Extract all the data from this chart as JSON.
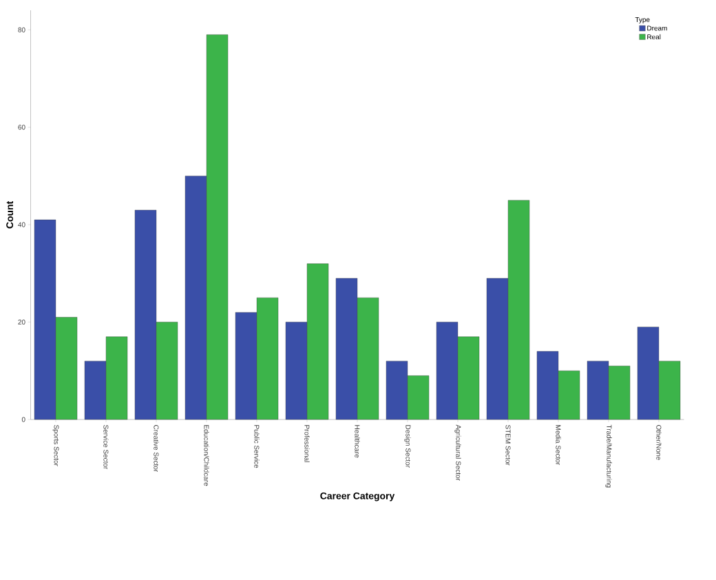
{
  "chart_data": {
    "type": "bar",
    "xlabel": "Career Category",
    "ylabel": "Count",
    "legend_title": "Type",
    "categories": [
      "Sports Sector",
      "Service Sector",
      "Creative Sector",
      "Education/Childcare",
      "Public Service",
      "Professional",
      "Healthcare",
      "Design Sector",
      "Agricultural Sector",
      "STEM Sector",
      "Media Sector",
      "Trade/Manufacturing",
      "Other/None"
    ],
    "series": [
      {
        "name": "Dream",
        "color": "#3a4fa8",
        "values": [
          41,
          12,
          43,
          50,
          22,
          20,
          29,
          12,
          20,
          29,
          14,
          12,
          19
        ]
      },
      {
        "name": "Real",
        "color": "#3cb44a",
        "values": [
          21,
          17,
          20,
          79,
          25,
          32,
          25,
          9,
          17,
          45,
          10,
          11,
          12
        ]
      }
    ],
    "ylim": [
      0,
      84
    ],
    "yticks": [
      0,
      20,
      40,
      60,
      80
    ],
    "grid": false,
    "legend": "top right"
  }
}
